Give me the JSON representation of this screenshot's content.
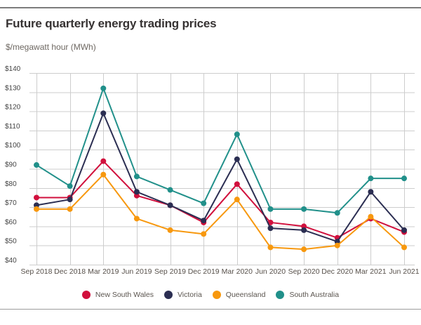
{
  "header": {
    "title": "Future quarterly energy trading prices",
    "subtitle": "$/megawatt hour (MWh)"
  },
  "chart_data": {
    "type": "line",
    "title": "Future quarterly energy trading prices",
    "ylabel": "$/megawatt hour (MWh)",
    "xlabel": "",
    "categories": [
      "Sep 2018",
      "Dec 2018",
      "Mar 2019",
      "Jun 2019",
      "Sep 2019",
      "Dec 2019",
      "Mar 2020",
      "Jun 2020",
      "Sep 2020",
      "Dec 2020",
      "Mar 2021",
      "Jun 2021"
    ],
    "series": [
      {
        "name": "New South Wales",
        "color": "#d1103d",
        "values": [
          75,
          75,
          94,
          76,
          71,
          62,
          82,
          62,
          60,
          54,
          64,
          57
        ]
      },
      {
        "name": "Victoria",
        "color": "#2b2e52",
        "values": [
          71,
          74,
          119,
          78,
          71,
          63,
          95,
          59,
          58,
          52,
          78,
          58
        ]
      },
      {
        "name": "Queensland",
        "color": "#f7980e",
        "values": [
          69,
          69,
          87,
          64,
          58,
          56,
          74,
          49,
          48,
          50,
          65,
          49
        ]
      },
      {
        "name": "South Australia",
        "color": "#21908a",
        "values": [
          92,
          81,
          132,
          86,
          79,
          72,
          108,
          69,
          69,
          67,
          85,
          85
        ]
      }
    ],
    "ylim": [
      40,
      140
    ],
    "y_tick_step": 10,
    "y_tick_labels": [
      "$140",
      "$130",
      "$120",
      "$110",
      "$100",
      "$90",
      "$80",
      "$70",
      "$60",
      "$50",
      "$40"
    ],
    "grid": true,
    "gridline_color": "#cdcdcd",
    "legend_position": "bottom"
  }
}
